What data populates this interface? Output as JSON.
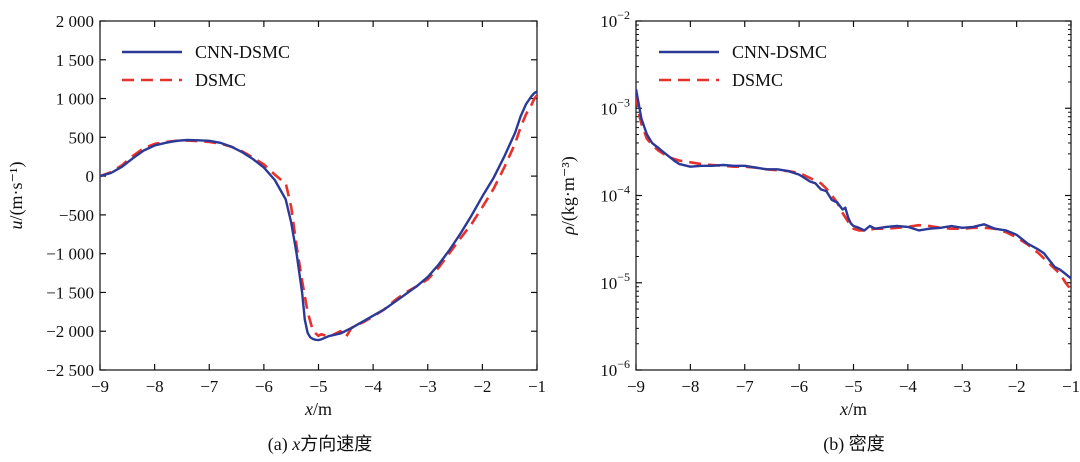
{
  "colors": {
    "cnn": "#2b3a98",
    "dsmc": "#e8312a",
    "axis": "#111111"
  },
  "chart_data": [
    {
      "type": "line",
      "caption_prefix": "(a) ",
      "caption_var": "x",
      "caption_text": "方向速度",
      "xlabel_var": "x",
      "xlabel_unit": "/m",
      "ylabel_var": "u",
      "ylabel_unit": "/(m·s⁻¹)",
      "xlim": [
        -9,
        -1
      ],
      "ylim": [
        -2500,
        2000
      ],
      "yscale": "linear",
      "x_ticks": [
        -9,
        -8,
        -7,
        -6,
        -5,
        -4,
        -3,
        -2,
        -1
      ],
      "x_tick_labels": [
        "−9",
        "−8",
        "−7",
        "−6",
        "−5",
        "−4",
        "−3",
        "−2",
        "−1"
      ],
      "y_ticks": [
        -2500,
        -2000,
        -1500,
        -1000,
        -500,
        0,
        500,
        1000,
        1500,
        2000
      ],
      "y_tick_labels": [
        "−2 500",
        "−2 000",
        "−1 500",
        "−1 000",
        "−500",
        "0",
        "500",
        "1 000",
        "1 500",
        "2 000"
      ],
      "legend": "top-left",
      "series": [
        {
          "name": "CNN-DSMC",
          "style": "solid",
          "x": [
            -9.0,
            -8.8,
            -8.6,
            -8.4,
            -8.2,
            -8.0,
            -7.8,
            -7.6,
            -7.4,
            -7.2,
            -7.0,
            -6.8,
            -6.6,
            -6.4,
            -6.2,
            -6.0,
            -5.8,
            -5.6,
            -5.5,
            -5.4,
            -5.3,
            -5.25,
            -5.2,
            -5.15,
            -5.1,
            -5.05,
            -5.0,
            -4.95,
            -4.9,
            -4.8,
            -4.6,
            -4.4,
            -4.2,
            -4.0,
            -3.8,
            -3.6,
            -3.4,
            -3.2,
            -3.0,
            -2.8,
            -2.6,
            -2.4,
            -2.2,
            -2.0,
            -1.8,
            -1.6,
            -1.4,
            -1.3,
            -1.2,
            -1.1,
            -1.05,
            -1.0
          ],
          "y": [
            0,
            40,
            120,
            230,
            330,
            395,
            430,
            455,
            465,
            462,
            455,
            430,
            380,
            310,
            220,
            110,
            -50,
            -300,
            -600,
            -1000,
            -1500,
            -1850,
            -2020,
            -2080,
            -2100,
            -2110,
            -2115,
            -2105,
            -2090,
            -2060,
            -2030,
            -1960,
            -1880,
            -1800,
            -1720,
            -1620,
            -1520,
            -1420,
            -1300,
            -1140,
            -950,
            -740,
            -510,
            -260,
            -30,
            250,
            560,
            770,
            930,
            1030,
            1070,
            1090
          ]
        },
        {
          "name": "DSMC",
          "style": "dashed",
          "x": [
            -9.0,
            -8.8,
            -8.6,
            -8.4,
            -8.2,
            -8.0,
            -7.8,
            -7.6,
            -7.4,
            -7.2,
            -7.0,
            -6.8,
            -6.6,
            -6.4,
            -6.2,
            -6.0,
            -5.8,
            -5.7,
            -5.6,
            -5.5,
            -5.4,
            -5.3,
            -5.2,
            -5.1,
            -5.0,
            -4.95,
            -4.9,
            -4.8,
            -4.6,
            -4.5,
            -4.4,
            -4.2,
            -4.0,
            -3.8,
            -3.6,
            -3.4,
            -3.2,
            -3.0,
            -2.8,
            -2.6,
            -2.4,
            -2.2,
            -2.0,
            -1.8,
            -1.6,
            -1.4,
            -1.3,
            -1.2,
            -1.1,
            -1.05,
            -1.0
          ],
          "y": [
            0,
            50,
            140,
            260,
            360,
            415,
            440,
            455,
            458,
            452,
            440,
            420,
            380,
            320,
            240,
            150,
            20,
            -40,
            -90,
            -400,
            -900,
            -1350,
            -1750,
            -2000,
            -2060,
            -2040,
            -2050,
            -2070,
            -2000,
            -2080,
            -1960,
            -1890,
            -1810,
            -1720,
            -1600,
            -1500,
            -1420,
            -1330,
            -1180,
            -990,
            -800,
            -620,
            -400,
            -170,
            110,
            420,
            630,
            800,
            920,
            1000,
            1040
          ]
        }
      ]
    },
    {
      "type": "line",
      "caption_prefix": "(b) ",
      "caption_var": "",
      "caption_text": "密度",
      "xlabel_var": "x",
      "xlabel_unit": "/m",
      "ylabel_var": "ρ",
      "ylabel_unit": "/(kg·m⁻³)",
      "xlim": [
        -9,
        -1
      ],
      "ylim": [
        -6,
        -2
      ],
      "yscale": "log10",
      "x_ticks": [
        -9,
        -8,
        -7,
        -6,
        -5,
        -4,
        -3,
        -2,
        -1
      ],
      "x_tick_labels": [
        "−9",
        "−8",
        "−7",
        "−6",
        "−5",
        "−4",
        "−3",
        "−2",
        "−1"
      ],
      "y_ticks": [
        -6,
        -5,
        -4,
        -3,
        -2
      ],
      "y_tick_base": "10",
      "y_tick_exps": [
        "−6",
        "−5",
        "−4",
        "−3",
        "−2"
      ],
      "legend": "top-left",
      "series": [
        {
          "name": "CNN-DSMC",
          "style": "solid",
          "x": [
            -9.0,
            -8.95,
            -8.9,
            -8.8,
            -8.7,
            -8.6,
            -8.5,
            -8.4,
            -8.3,
            -8.2,
            -8.0,
            -7.8,
            -7.6,
            -7.4,
            -7.2,
            -7.0,
            -6.8,
            -6.6,
            -6.4,
            -6.2,
            -6.0,
            -5.9,
            -5.8,
            -5.7,
            -5.6,
            -5.5,
            -5.4,
            -5.3,
            -5.2,
            -5.15,
            -5.1,
            -5.05,
            -5.0,
            -4.9,
            -4.8,
            -4.7,
            -4.6,
            -4.4,
            -4.2,
            -4.0,
            -3.8,
            -3.6,
            -3.4,
            -3.2,
            -3.0,
            -2.8,
            -2.6,
            -2.4,
            -2.2,
            -2.0,
            -1.8,
            -1.6,
            -1.5,
            -1.4,
            -1.3,
            -1.2,
            -1.1,
            -1.0
          ],
          "y": [
            -2.78,
            -2.95,
            -3.12,
            -3.3,
            -3.4,
            -3.45,
            -3.5,
            -3.55,
            -3.6,
            -3.64,
            -3.67,
            -3.66,
            -3.66,
            -3.65,
            -3.66,
            -3.66,
            -3.68,
            -3.7,
            -3.7,
            -3.72,
            -3.76,
            -3.8,
            -3.84,
            -3.86,
            -3.93,
            -3.95,
            -4.05,
            -4.08,
            -4.16,
            -4.14,
            -4.25,
            -4.32,
            -4.35,
            -4.37,
            -4.4,
            -4.35,
            -4.38,
            -4.36,
            -4.35,
            -4.36,
            -4.4,
            -4.38,
            -4.37,
            -4.35,
            -4.37,
            -4.36,
            -4.33,
            -4.38,
            -4.4,
            -4.45,
            -4.55,
            -4.62,
            -4.66,
            -4.74,
            -4.82,
            -4.85,
            -4.9,
            -4.95
          ]
        },
        {
          "name": "DSMC",
          "style": "dashed",
          "x": [
            -9.0,
            -8.95,
            -8.9,
            -8.8,
            -8.7,
            -8.6,
            -8.5,
            -8.4,
            -8.2,
            -8.0,
            -7.8,
            -7.6,
            -7.4,
            -7.2,
            -7.0,
            -6.8,
            -6.6,
            -6.4,
            -6.2,
            -6.0,
            -5.8,
            -5.6,
            -5.5,
            -5.4,
            -5.3,
            -5.2,
            -5.1,
            -5.0,
            -4.9,
            -4.8,
            -4.6,
            -4.4,
            -4.2,
            -4.0,
            -3.8,
            -3.6,
            -3.4,
            -3.2,
            -3.0,
            -2.8,
            -2.6,
            -2.4,
            -2.2,
            -2.0,
            -1.8,
            -1.6,
            -1.4,
            -1.2,
            -1.1,
            -1.0
          ],
          "y": [
            -2.85,
            -3.05,
            -3.18,
            -3.35,
            -3.42,
            -3.48,
            -3.52,
            -3.56,
            -3.6,
            -3.62,
            -3.64,
            -3.65,
            -3.66,
            -3.67,
            -3.67,
            -3.68,
            -3.7,
            -3.71,
            -3.72,
            -3.74,
            -3.8,
            -3.86,
            -3.92,
            -4.0,
            -4.08,
            -4.2,
            -4.3,
            -4.38,
            -4.4,
            -4.4,
            -4.38,
            -4.38,
            -4.37,
            -4.36,
            -4.34,
            -4.35,
            -4.37,
            -4.38,
            -4.38,
            -4.37,
            -4.37,
            -4.38,
            -4.42,
            -4.48,
            -4.56,
            -4.66,
            -4.78,
            -4.9,
            -5.0,
            -5.08
          ]
        }
      ]
    }
  ]
}
